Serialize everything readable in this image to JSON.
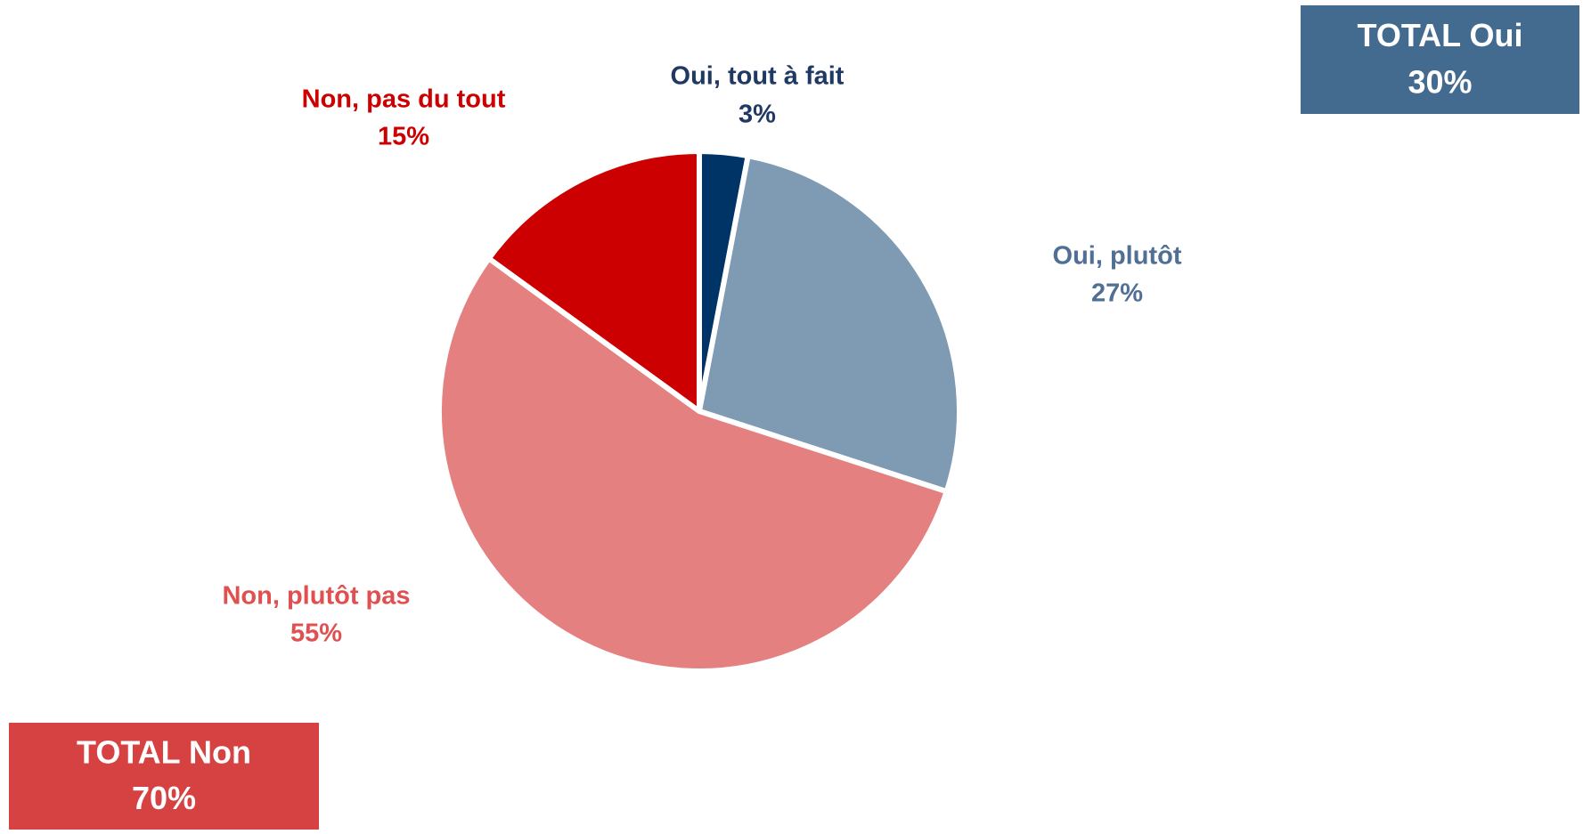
{
  "chart_data": {
    "type": "pie",
    "categories": [
      "Oui, tout à fait",
      "Oui, plutôt",
      "Non, plutôt pas",
      "Non, pas du tout"
    ],
    "values": [
      3,
      27,
      55,
      15
    ],
    "value_labels": [
      "3%",
      "27%",
      "55%",
      "15%"
    ],
    "colors": [
      "#003366",
      "#7f9ab3",
      "#e58080",
      "#cc0000"
    ],
    "label_colors": [
      "#1f3864",
      "#4f6f94",
      "#e05050",
      "#cc0000"
    ],
    "totals": [
      {
        "label": "TOTAL Oui",
        "value": 30,
        "value_label": "30%",
        "color": "#436a8f"
      },
      {
        "label": "TOTAL Non",
        "value": 70,
        "value_label": "70%",
        "color": "#d64242"
      }
    ]
  }
}
